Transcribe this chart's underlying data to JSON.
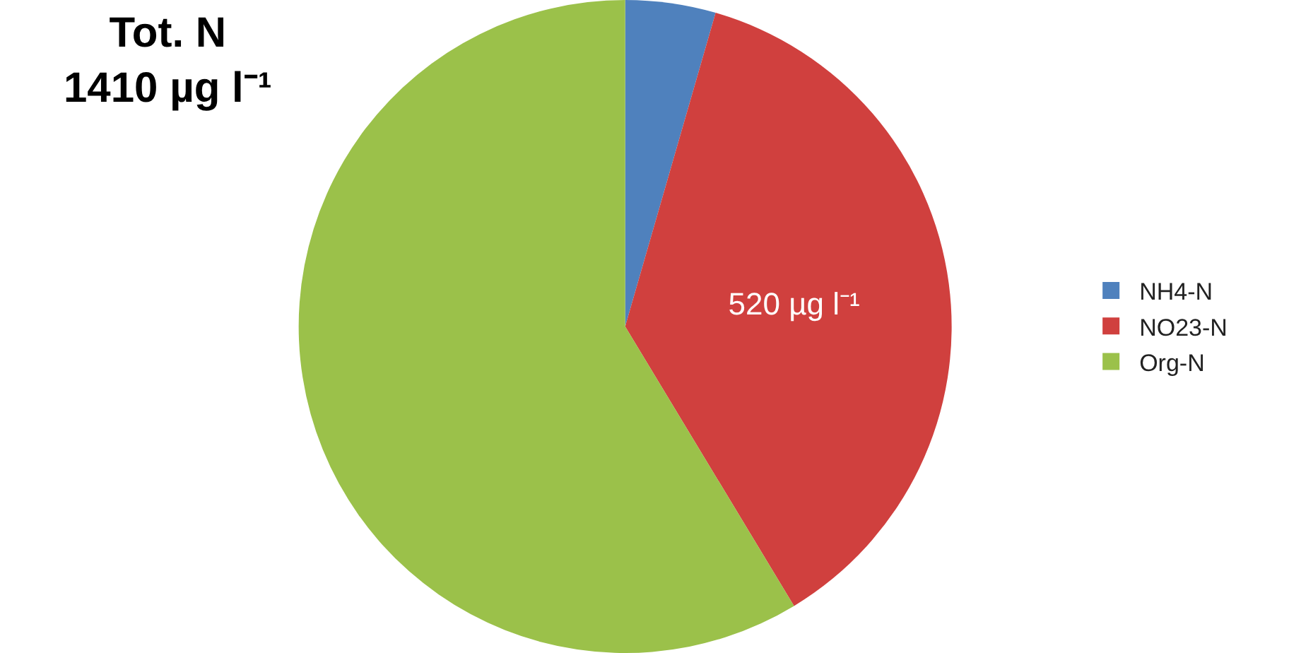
{
  "chart_data": {
    "type": "pie",
    "title": "Tot. N\n1410 µg l⁻¹",
    "categories": [
      "NH4-N",
      "NO23-N",
      "Org-N"
    ],
    "values": [
      63,
      520,
      827
    ],
    "colors": [
      "#4f81bd",
      "#d0403e",
      "#9bc14a"
    ],
    "value_labels": [
      null,
      "520 µg l⁻¹",
      null
    ],
    "legend": "right"
  }
}
